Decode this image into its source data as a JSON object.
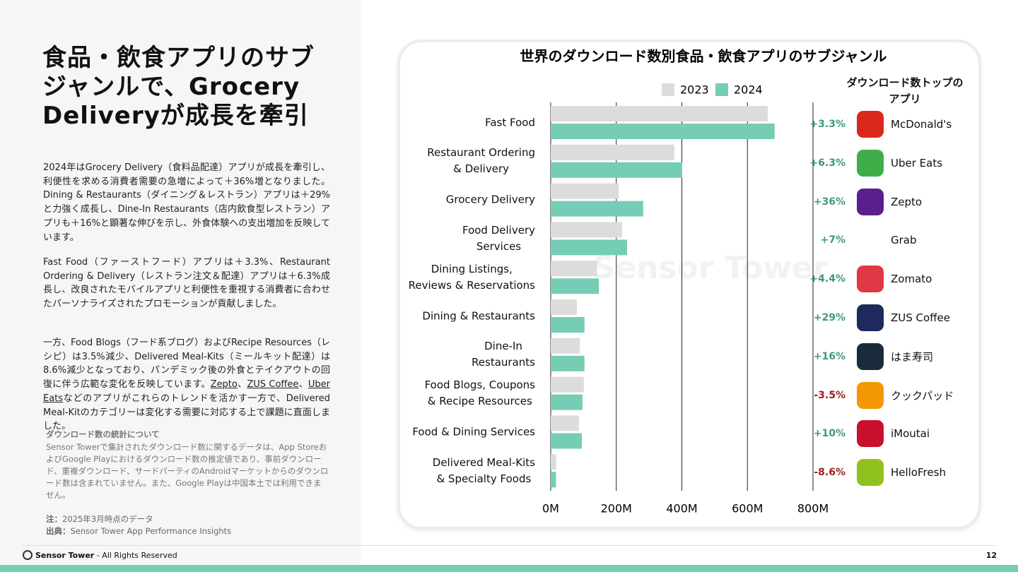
{
  "slide": {
    "title": "食品・飲食アプリのサブジャンルで、Grocery Deliveryが成長を牽引",
    "paragraphs": [
      "2024年はGrocery Delivery（食料品配達）アプリが成長を牽引し、利便性を求める消費者需要の急増によって＋36%増となりました。Dining & Restaurants（ダイニング＆レストラン）アプリは＋29%と力強く成長し、Dine-In Restaurants（店内飲食型レストラン）アプリも＋16%と顕著な伸びを示し、外食体験への支出増加を反映しています。",
      "Fast Food（ファーストフード）アプリは＋3.3%、Restaurant Ordering & Delivery（レストラン注文＆配達）アプリは＋6.3%成長し、改良されたモバイルアプリと利便性を重視する消費者に合わせたパーソナライズされたプロモーションが貢献しました。"
    ],
    "paragraph3": [
      "一方、Food Blogs（フード系ブログ）およびRecipe Resources（レシピ）は3.5%減少、Delivered Meal-Kits（ミールキット配達）は8.6%減少となっており、パンデミック後の外食とテイクアウトの回復に伴う広範な変化を反映しています。",
      "Zepto",
      "、",
      "ZUS Coffee",
      "、",
      "Uber Eats",
      "などのアプリがこれらのトレンドを活かす一方で、Delivered Meal-Kitのカテゴリーは変化する需要に対応する上で課題に直面しました。"
    ],
    "note_heading": "ダウンロード数の統計について",
    "note_body": "Sensor Towerで集計されたダウンロード数に関するデータは、App StoreおよびGoogle Playにおけるダウンロード数の推定値であり、事前ダウンロード、重複ダウンロード、サードパーティのAndroidマーケットからのダウンロード数は含まれていません。また、Google Playは中国本土では利用できません。",
    "note_label": "注：",
    "note_text": "2025年3月時点のデータ",
    "source_label": "出典：",
    "source_text": "Sensor Tower App Performance Insights",
    "footer_brand": "Sensor Tower",
    "footer_rights": "- All Rights Reserved",
    "page_number": "12"
  },
  "chart_data": {
    "type": "bar",
    "orientation": "horizontal",
    "title": "世界のダウンロード数別食品・飲食アプリのサブジャンル",
    "categories": [
      "Fast Food",
      "Restaurant Ordering\n& Delivery",
      "Grocery Delivery",
      "Food Delivery\nServices",
      "Dining Listings,\nReviews & Reservations",
      "Dining & Restaurants",
      "Dine-In\nRestaurants",
      "Food Blogs, Coupons\n& Recipe Resources",
      "Food & Dining Services",
      "Delivered Meal-Kits\n& Specialty Foods"
    ],
    "series": [
      {
        "name": "2023",
        "color": "#dcdcdc",
        "values": [
          662,
          377,
          207,
          218,
          141,
          80,
          89,
          101,
          86,
          17
        ]
      },
      {
        "name": "2024",
        "color": "#76cdb5",
        "values": [
          683,
          401,
          282,
          233,
          147,
          103,
          103,
          97,
          95,
          16
        ]
      }
    ],
    "xlim": [
      0,
      800
    ],
    "xticks": [
      {
        "value": 0,
        "label": "0M"
      },
      {
        "value": 200,
        "label": "200M"
      },
      {
        "value": 400,
        "label": "400M"
      },
      {
        "value": 600,
        "label": "600M"
      },
      {
        "value": 800,
        "label": "800M"
      }
    ],
    "grid": true,
    "legend": "top",
    "watermark": "Sensor Tower",
    "apps_header": "ダウンロード数トップの\nアプリ",
    "apps": [
      {
        "growth": "+3.3%",
        "name": "McDonald's",
        "color": "#da291c"
      },
      {
        "growth": "+6.3%",
        "name": "Uber Eats",
        "color": "#3fae49"
      },
      {
        "growth": "+36%",
        "name": "Zepto",
        "color": "#5a1f8c"
      },
      {
        "growth": "+7%",
        "name": "Grab",
        "color": "#ffffff"
      },
      {
        "growth": "+4.4%",
        "name": "Zomato",
        "color": "#e23744"
      },
      {
        "growth": "+29%",
        "name": "ZUS Coffee",
        "color": "#1c2a5e"
      },
      {
        "growth": "+16%",
        "name": "はま寿司",
        "color": "#1a2b3c"
      },
      {
        "growth": "-3.5%",
        "name": "クックパッド",
        "color": "#f39800"
      },
      {
        "growth": "+10%",
        "name": "iMoutai",
        "color": "#c8102e"
      },
      {
        "growth": "-8.6%",
        "name": "HelloFresh",
        "color": "#91c11e"
      }
    ]
  }
}
